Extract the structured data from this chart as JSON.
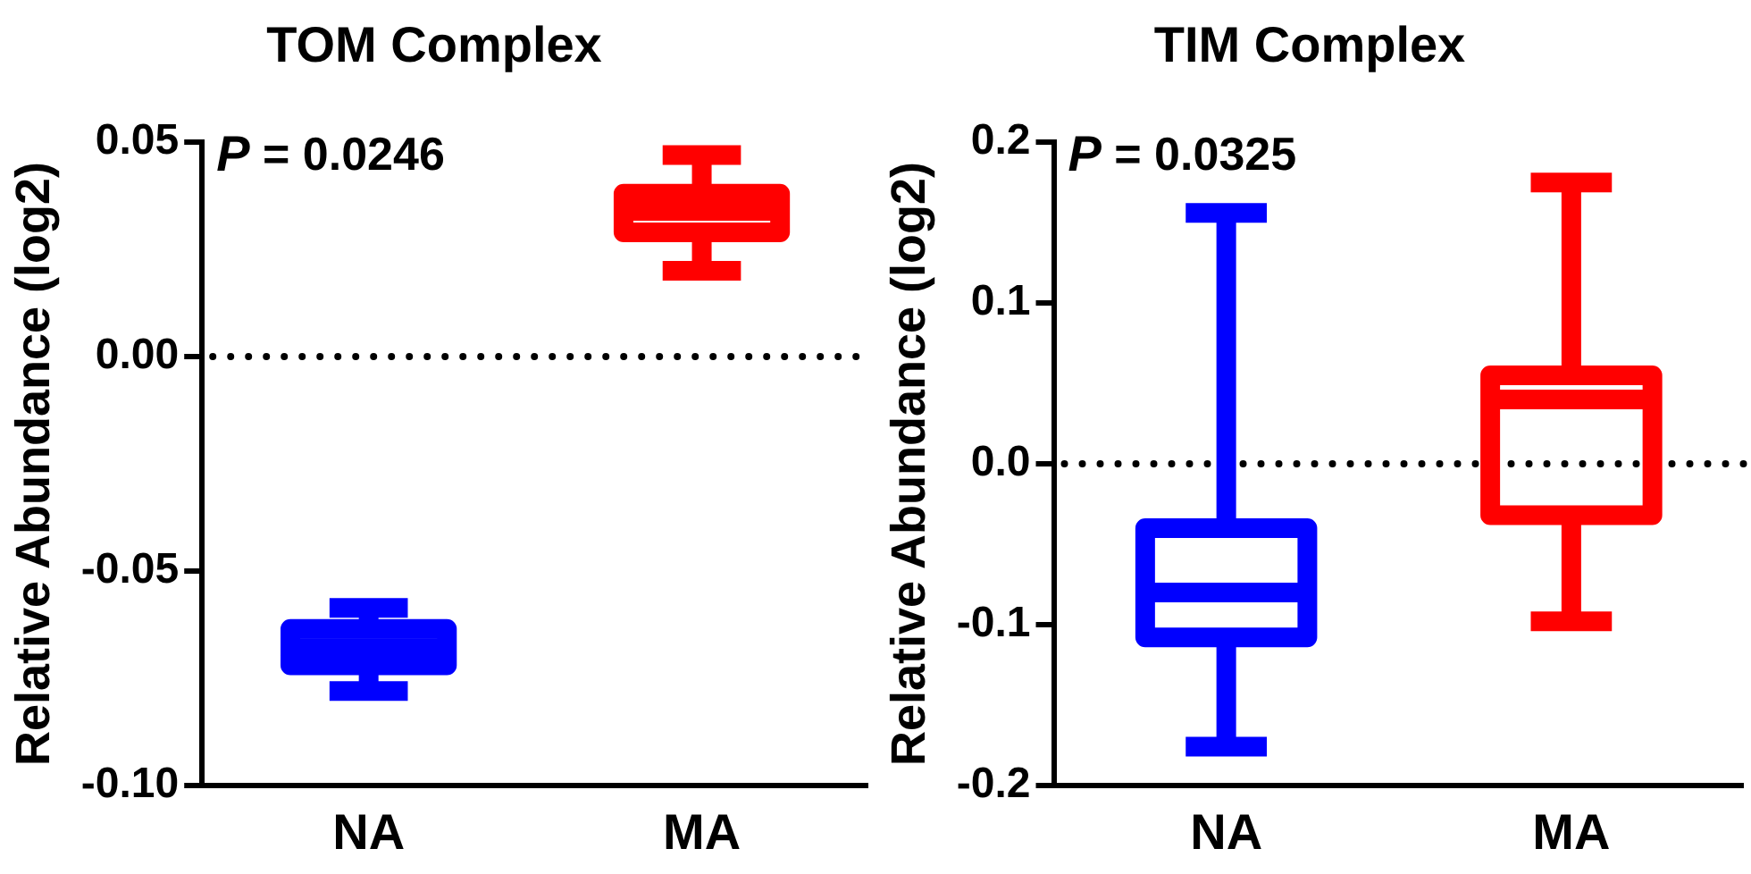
{
  "chart_data": [
    {
      "type": "box",
      "title": "TOM Complex",
      "ylabel": "Relative Abundance (log2)",
      "categories": [
        "NA",
        "MA"
      ],
      "colors": [
        "#0000ff",
        "#ff0000"
      ],
      "boxes": [
        {
          "low": -0.078,
          "q1": -0.072,
          "median": -0.068,
          "q3": -0.0635,
          "high": -0.0586
        },
        {
          "low": 0.02,
          "q1": 0.029,
          "median": 0.034,
          "q3": 0.038,
          "high": 0.047
        }
      ],
      "ylim": [
        -0.1,
        0.05
      ],
      "yticks": [
        {
          "value": -0.1,
          "label": "-0.10"
        },
        {
          "value": -0.05,
          "label": "-0.05"
        },
        {
          "value": 0,
          "label": "0.00"
        },
        {
          "value": 0.05,
          "label": "0.05"
        }
      ],
      "ref_lines": [
        {
          "axis": "y",
          "value": 0,
          "line_style": "dotted",
          "color": "#000000"
        }
      ],
      "annotations": [
        "P = 0.0246"
      ]
    },
    {
      "type": "box",
      "title": "TIM Complex",
      "ylabel": "Relative Abundance (log2)",
      "categories": [
        "NA",
        "MA"
      ],
      "colors": [
        "#0000ff",
        "#ff0000"
      ],
      "boxes": [
        {
          "low": -0.176,
          "q1": -0.108,
          "median": -0.08,
          "q3": -0.04,
          "high": 0.156
        },
        {
          "low": -0.098,
          "q1": -0.032,
          "median": 0.04,
          "q3": 0.055,
          "high": 0.175
        }
      ],
      "ylim": [
        -0.2,
        0.2
      ],
      "yticks": [
        -0.2,
        -0.1,
        {
          "value": 0,
          "label": "0.0"
        },
        0.1,
        0.2
      ],
      "ref_lines": [
        {
          "axis": "y",
          "value": 0,
          "line_style": "dotted",
          "color": "#000000"
        }
      ],
      "annotations": [
        "P = 0.0325"
      ]
    }
  ]
}
